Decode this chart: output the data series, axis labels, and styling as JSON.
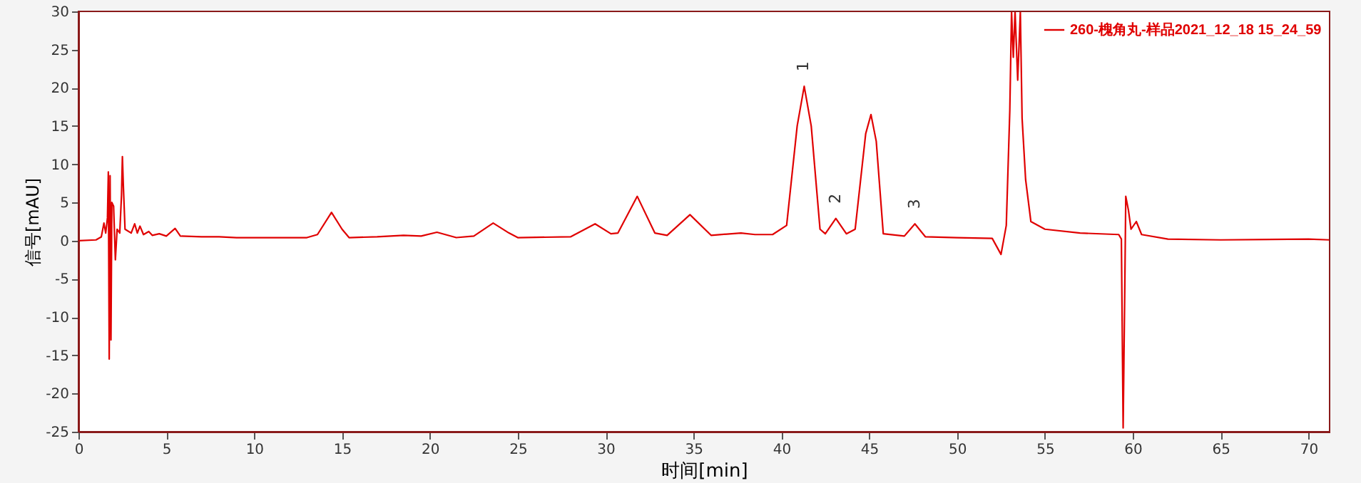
{
  "chart_data": {
    "type": "line",
    "xlabel": "时间[min]",
    "ylabel": "信号[mAU]",
    "xlim": [
      0,
      71.2
    ],
    "xticks": [
      0,
      5,
      10,
      15,
      20,
      25,
      30,
      35,
      40,
      45,
      50,
      55,
      60,
      65,
      70
    ],
    "ylim": [
      -25,
      30
    ],
    "yticks": [
      -25,
      -20,
      -15,
      -10,
      -5,
      0,
      5,
      10,
      15,
      20,
      25,
      30
    ],
    "grid": false,
    "legend": "top right",
    "marker": "none",
    "line_style": "solid",
    "annotations": [
      {
        "text": "1",
        "x": 41.3,
        "y": 20.2
      },
      {
        "text": "2",
        "x": 43.1,
        "y": 2.9
      },
      {
        "text": "3",
        "x": 47.6,
        "y": 2.2
      }
    ],
    "series": [
      {
        "name": "260-槐角丸-样品2021_12_18 15_24_59",
        "color": "#e00000",
        "x": [
          0,
          1.0,
          1.3,
          1.45,
          1.55,
          1.65,
          1.7,
          1.75,
          1.8,
          1.85,
          1.9,
          2.0,
          2.1,
          2.2,
          2.35,
          2.45,
          2.5,
          2.55,
          2.65,
          3.0,
          3.2,
          3.35,
          3.5,
          3.7,
          4.0,
          4.2,
          4.6,
          5.0,
          5.5,
          5.8,
          7,
          8,
          9,
          13,
          13.6,
          14.4,
          15.0,
          15.4,
          17,
          18.5,
          19.5,
          20.4,
          21.5,
          22.5,
          23.6,
          24.5,
          25,
          28,
          29.4,
          30.3,
          30.7,
          31.8,
          32.8,
          33.5,
          34.8,
          36,
          37.7,
          38.5,
          39.5,
          40.3,
          40.9,
          41.3,
          41.7,
          42.2,
          42.5,
          43.1,
          43.7,
          44.2,
          44.8,
          45.1,
          45.4,
          45.8,
          47,
          47.6,
          48.2,
          50,
          52,
          52.5,
          52.8,
          53.0,
          53.1,
          53.2,
          53.3,
          53.45,
          53.6,
          53.7,
          53.9,
          54.2,
          55,
          57,
          59.2,
          59.35,
          59.45,
          59.55,
          59.6,
          59.75,
          59.9,
          60.2,
          60.5,
          62,
          65,
          70,
          71.2
        ],
        "values": [
          0,
          0.1,
          0.5,
          2.3,
          1,
          3,
          9,
          -15.5,
          8.5,
          -13,
          5,
          4.5,
          -2.5,
          1.5,
          1,
          6,
          11,
          7.5,
          1.5,
          1,
          2.2,
          1,
          1.9,
          0.8,
          1.2,
          0.7,
          0.9,
          0.6,
          1.6,
          0.6,
          0.5,
          0.5,
          0.4,
          0.4,
          0.8,
          3.7,
          1.5,
          0.4,
          0.5,
          0.7,
          0.6,
          1.1,
          0.4,
          0.6,
          2.3,
          1,
          0.4,
          0.5,
          2.2,
          0.9,
          1.0,
          5.8,
          1.0,
          0.7,
          3.4,
          0.7,
          1,
          0.8,
          0.8,
          2,
          15,
          20.2,
          15,
          1.5,
          0.9,
          2.9,
          0.9,
          1.5,
          14,
          16.5,
          13,
          0.9,
          0.6,
          2.2,
          0.5,
          0.4,
          0.3,
          -1.8,
          2,
          17,
          30,
          24,
          30,
          21,
          30,
          16,
          8,
          2.5,
          1.5,
          1,
          0.8,
          0.2,
          -24.5,
          -5,
          5.8,
          4,
          1.5,
          2.5,
          0.8,
          0.2,
          0.1,
          0.2,
          0.1
        ]
      }
    ]
  }
}
